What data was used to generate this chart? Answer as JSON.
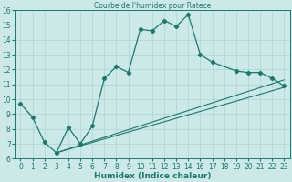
{
  "title": "Courbe de l'humidex pour Ratece",
  "xlabel": "Humidex (Indice chaleur)",
  "bg_color": "#cce8e8",
  "line_color": "#1a7a6a",
  "grid_color": "#aad4d4",
  "xlim": [
    -0.5,
    23.5
  ],
  "ylim": [
    6,
    16
  ],
  "xtick_vals": [
    0,
    1,
    2,
    3,
    4,
    5,
    6,
    7,
    8,
    9,
    10,
    11,
    12,
    13,
    14,
    16,
    17,
    18,
    19,
    20,
    21,
    22,
    23
  ],
  "xtick_labels": [
    "0",
    "1",
    "2",
    "3",
    "4",
    "5",
    "6",
    "7",
    "8",
    "9",
    "10",
    "11",
    "12",
    "13",
    "14",
    "16",
    "17",
    "18",
    "19",
    "20",
    "21",
    "22",
    "23"
  ],
  "ytick_vals": [
    6,
    7,
    8,
    9,
    10,
    11,
    12,
    13,
    14,
    15,
    16
  ],
  "ytick_labels": [
    "6",
    "7",
    "8",
    "9",
    "10",
    "11",
    "12",
    "13",
    "14",
    "15",
    "16"
  ],
  "main_x": [
    0,
    1,
    2,
    3,
    4,
    5,
    6,
    7,
    8,
    9,
    10,
    11,
    12,
    13,
    14,
    16,
    17,
    19,
    20,
    21,
    22,
    23
  ],
  "main_y": [
    9.7,
    8.8,
    7.1,
    6.4,
    8.1,
    7.0,
    8.2,
    11.4,
    12.2,
    11.8,
    14.7,
    14.6,
    15.3,
    14.9,
    15.7,
    13.0,
    12.5,
    11.9,
    11.8,
    11.8,
    11.4,
    10.9
  ],
  "line2_x": [
    3,
    23
  ],
  "line2_y": [
    6.4,
    10.8
  ],
  "line3_x": [
    3,
    23
  ],
  "line3_y": [
    6.4,
    11.3
  ]
}
